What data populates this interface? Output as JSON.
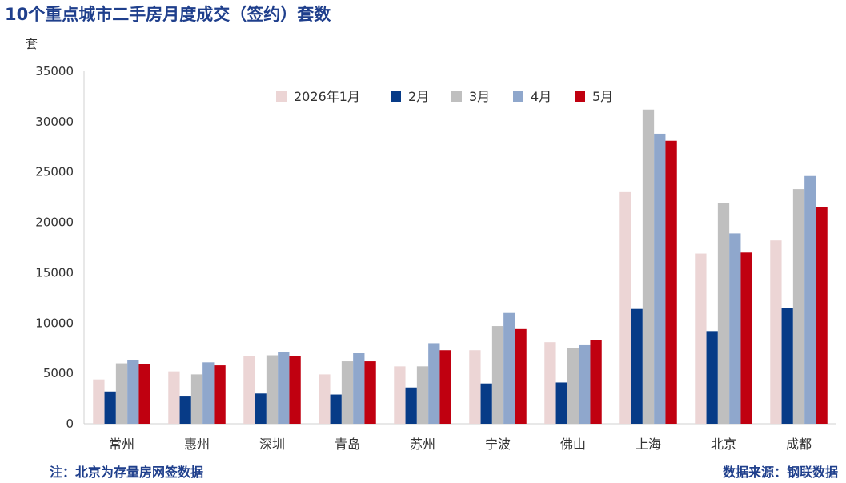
{
  "header": {
    "title": "10个重点城市二手房月度成交（签约）套数",
    "unit": "套"
  },
  "footer": {
    "note": "注：北京为存量房网签数据",
    "source": "数据来源：钢联数据"
  },
  "chart_data": {
    "type": "bar",
    "title": "10个重点城市二手房月度成交（签约）套数",
    "ylabel": "套",
    "xlabel": "",
    "ylim": [
      0,
      35000
    ],
    "yticks": [
      0,
      5000,
      10000,
      15000,
      20000,
      25000,
      30000,
      35000
    ],
    "grid": false,
    "legend_position": "top",
    "categories": [
      "常州",
      "惠州",
      "深圳",
      "青岛",
      "苏州",
      "宁波",
      "佛山",
      "上海",
      "北京",
      "成都"
    ],
    "series": [
      {
        "name": "2026年1月",
        "color": "#ecd5d5",
        "values": [
          4400,
          5200,
          6700,
          4900,
          5700,
          7300,
          8100,
          23000,
          16900,
          18200
        ]
      },
      {
        "name": "2月",
        "color": "#073b87",
        "values": [
          3200,
          2700,
          3000,
          2900,
          3600,
          4000,
          4100,
          11400,
          9200,
          11500
        ]
      },
      {
        "name": "3月",
        "color": "#bfbfbf",
        "values": [
          6000,
          4900,
          6800,
          6200,
          5700,
          9700,
          7500,
          31200,
          21900,
          23300
        ]
      },
      {
        "name": "4月",
        "color": "#8fa7cc",
        "values": [
          6300,
          6100,
          7100,
          7000,
          8000,
          11000,
          7800,
          28800,
          18900,
          24600
        ]
      },
      {
        "name": "5月",
        "color": "#c00010",
        "values": [
          5900,
          5800,
          6700,
          6200,
          7300,
          9400,
          8300,
          28100,
          17000,
          21500
        ]
      }
    ]
  }
}
